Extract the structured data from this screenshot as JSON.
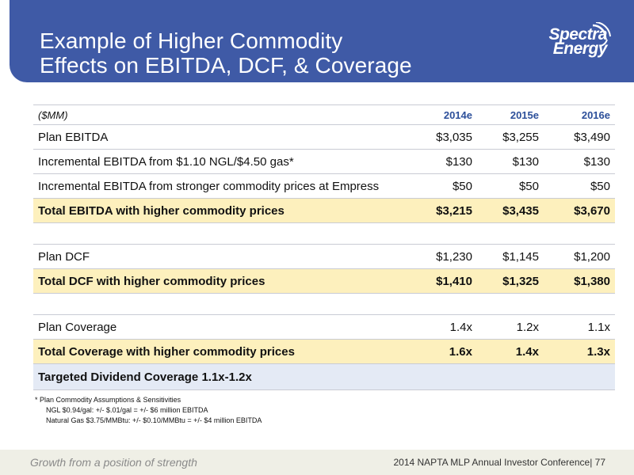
{
  "header": {
    "title_line1": "Example of Higher Commodity",
    "title_line2": "Effects on EBITDA, DCF, & Coverage"
  },
  "logo": {
    "line1": "Spectra",
    "line2": "Energy"
  },
  "table": {
    "unit_label": "($MM)",
    "columns": [
      "2014e",
      "2015e",
      "2016e"
    ],
    "rows": [
      {
        "label": "Plan EBITDA",
        "values": [
          "$3,035",
          "$3,255",
          "$3,490"
        ]
      },
      {
        "label": "Incremental EBITDA from $1.10 NGL/$4.50 gas*",
        "values": [
          "$130",
          "$130",
          "$130"
        ]
      },
      {
        "label": "Incremental EBITDA from stronger commodity prices at Empress",
        "values": [
          "$50",
          "$50",
          "$50"
        ]
      },
      {
        "label": "Total EBITDA with higher commodity prices",
        "values": [
          "$3,215",
          "$3,435",
          "$3,670"
        ]
      },
      {
        "label": "Plan DCF",
        "values": [
          "$1,230",
          "$1,145",
          "$1,200"
        ]
      },
      {
        "label": "Total DCF with higher commodity prices",
        "values": [
          "$1,410",
          "$1,325",
          "$1,380"
        ]
      },
      {
        "label": "Plan Coverage",
        "values": [
          "1.4x",
          "1.2x",
          "1.1x"
        ]
      },
      {
        "label": "Total Coverage with higher commodity prices",
        "values": [
          "1.6x",
          "1.4x",
          "1.3x"
        ]
      },
      {
        "label": "Targeted Dividend Coverage 1.1x-1.2x"
      }
    ]
  },
  "footnote": {
    "line1": "* Plan Commodity Assumptions & Sensitivities",
    "line2": "NGL $0.94/gal:  +/- $.01/gal = +/- $6 million EBITDA",
    "line3": "Natural Gas $3.75/MMBtu:   +/- $0.10/MMBtu = +/- $4 million EBITDA"
  },
  "footer": {
    "tagline": "Growth from a position of strength",
    "conference": "2014 NAPTA MLP Annual Investor Conference|  77"
  },
  "colors": {
    "header_blue": "#3f5aa6",
    "total_row_yellow": "#fdf0bd",
    "target_row_blue": "#e4eaf5",
    "column_header_blue": "#2c4f9a"
  }
}
